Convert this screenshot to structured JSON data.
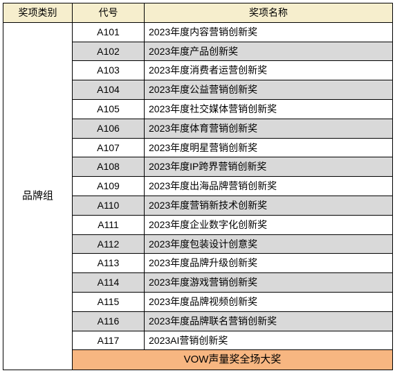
{
  "table": {
    "header_bg": "#f6eecd",
    "row_alt_bg": "#d9d9d9",
    "row_bg": "#ffffff",
    "grand_bg": "#f7b681",
    "columns": [
      "奖项类别",
      "代号",
      "奖项名称"
    ],
    "category_label": "品牌组",
    "rows": [
      {
        "code": "A101",
        "name": "2023年度内容营销创新奖"
      },
      {
        "code": "A102",
        "name": "2023年度产品创新奖"
      },
      {
        "code": "A103",
        "name": "2023年度消费者运营创新奖"
      },
      {
        "code": "A104",
        "name": "2023年度公益营销创新奖"
      },
      {
        "code": "A105",
        "name": "2023年度社交媒体营销创新奖"
      },
      {
        "code": "A106",
        "name": "2023年度体育营销创新奖"
      },
      {
        "code": "A107",
        "name": "2023年度明星营销创新奖"
      },
      {
        "code": "A108",
        "name": "2023年度IP跨界营销创新奖"
      },
      {
        "code": "A109",
        "name": "2023年度出海品牌营销创新奖"
      },
      {
        "code": "A110",
        "name": "2023年度营销新技术创新奖"
      },
      {
        "code": "A111",
        "name": "2023年度企业数字化创新奖"
      },
      {
        "code": "A112",
        "name": "2023年度包装设计创意奖"
      },
      {
        "code": "A113",
        "name": "2023年度品牌升级创新奖"
      },
      {
        "code": "A114",
        "name": "2023年度游戏营销创新奖"
      },
      {
        "code": "A115",
        "name": "2023年度品牌视频创新奖"
      },
      {
        "code": "A116",
        "name": "2023年度品牌联名营销创新奖"
      },
      {
        "code": "A117",
        "name": "2023AI营销创新奖"
      }
    ],
    "grand_award": "VOW声量奖全场大奖"
  }
}
